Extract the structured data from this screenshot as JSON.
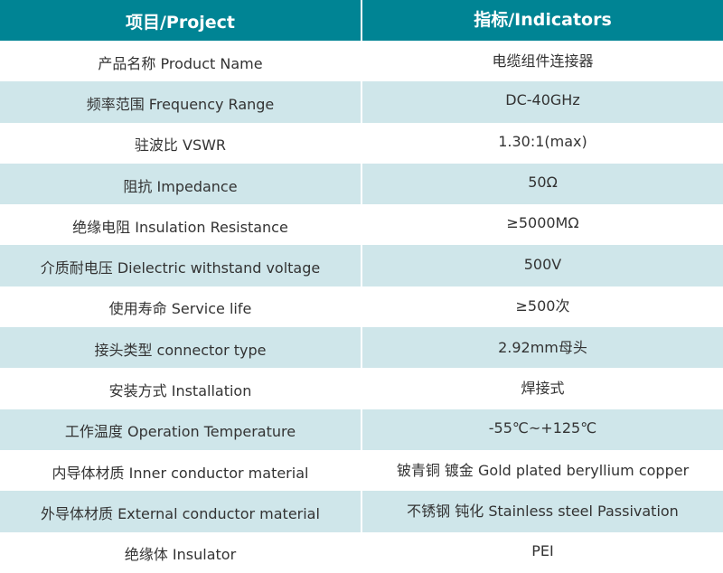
{
  "header": {
    "project": "项目/Project",
    "indicators": "指标/Indicators"
  },
  "colors": {
    "header_bg": "#008494",
    "alt_row_bg": "#cfe6ea"
  },
  "rows": [
    {
      "project": "产品名称 Product Name",
      "indicator": "电缆组件连接器"
    },
    {
      "project": "频率范围 Frequency Range",
      "indicator": "DC-40GHz"
    },
    {
      "project": "驻波比 VSWR",
      "indicator": "1.30:1(max)"
    },
    {
      "project": "阻抗 Impedance",
      "indicator": "50Ω"
    },
    {
      "project": "绝缘电阻 Insulation Resistance",
      "indicator": "≥5000MΩ"
    },
    {
      "project": "介质耐电压 Dielectric withstand voltage",
      "indicator": "500V"
    },
    {
      "project": "使用寿命 Service life",
      "indicator": "≥500次"
    },
    {
      "project": "接头类型  connector type",
      "indicator": "2.92mm母头"
    },
    {
      "project": "安装方式 Installation",
      "indicator": "焊接式"
    },
    {
      "project": "工作温度 Operation Temperature",
      "indicator": "-55℃~+125℃"
    },
    {
      "project": "内导体材质 Inner conductor material",
      "indicator": "铍青铜 镀金 Gold plated beryllium copper"
    },
    {
      "project": "外导体材质 External conductor material",
      "indicator": "不锈钢 钝化 Stainless steel Passivation"
    },
    {
      "project": "绝缘体 Insulator",
      "indicator": "PEI"
    }
  ]
}
